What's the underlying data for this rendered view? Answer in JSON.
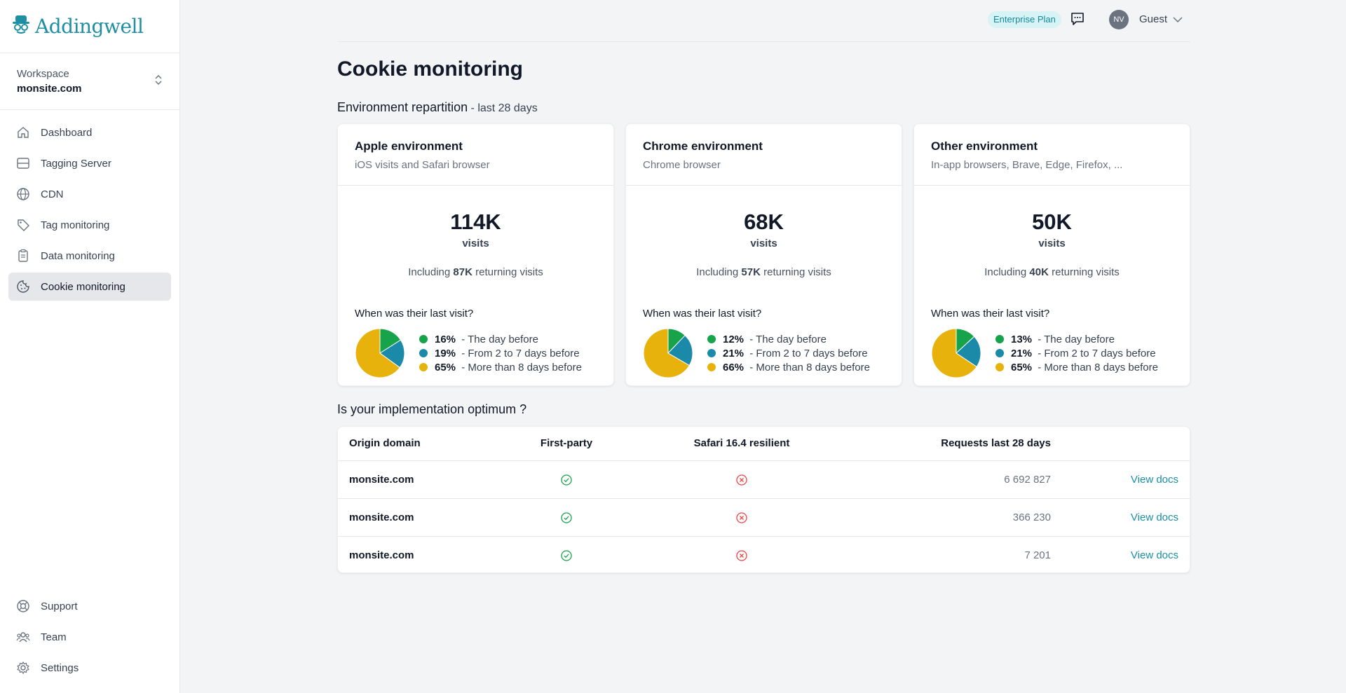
{
  "sidebar": {
    "logo": "Addingwell",
    "workspace_label": "Workspace",
    "workspace_name": "monsite.com",
    "nav": [
      {
        "label": "Dashboard",
        "icon": "home-icon"
      },
      {
        "label": "Tagging Server",
        "icon": "server-icon"
      },
      {
        "label": "CDN",
        "icon": "globe-icon"
      },
      {
        "label": "Tag monitoring",
        "icon": "tag-icon"
      },
      {
        "label": "Data monitoring",
        "icon": "clipboard-icon"
      },
      {
        "label": "Cookie monitoring",
        "icon": "cookie-icon",
        "active": true
      }
    ],
    "bottom_nav": [
      {
        "label": "Support",
        "icon": "lifebuoy-icon"
      },
      {
        "label": "Team",
        "icon": "team-icon"
      },
      {
        "label": "Settings",
        "icon": "gear-icon"
      }
    ]
  },
  "header": {
    "plan_badge": "Enterprise Plan",
    "avatar_initials": "NV",
    "user_name": "Guest"
  },
  "page": {
    "title": "Cookie monitoring",
    "env_section_title": "Environment repartition",
    "env_section_suffix": " - last 28 days",
    "table_section_title": "Is your implementation optimum ?"
  },
  "colors": {
    "green": "#16a34a",
    "blue": "#1b8aa8",
    "yellow": "#e8b20c",
    "accent": "#1a8fa6",
    "error": "#ef4444"
  },
  "environments": [
    {
      "title": "Apple environment",
      "subtitle": "iOS visits and Safari browser",
      "visits": "114K",
      "visits_label": "visits",
      "including_prefix": "Including ",
      "returning": "87K",
      "including_suffix": " returning visits",
      "question": "When was their last visit?",
      "breakdown": [
        {
          "pct": "16%",
          "label": " - The day before",
          "value": 16
        },
        {
          "pct": "19%",
          "label": " - From 2 to 7 days before",
          "value": 19
        },
        {
          "pct": "65%",
          "label": " - More than 8 days before",
          "value": 65
        }
      ]
    },
    {
      "title": "Chrome environment",
      "subtitle": "Chrome browser",
      "visits": "68K",
      "visits_label": "visits",
      "including_prefix": "Including ",
      "returning": "57K",
      "including_suffix": " returning visits",
      "question": "When was their last visit?",
      "breakdown": [
        {
          "pct": "12%",
          "label": " - The day before",
          "value": 12
        },
        {
          "pct": "21%",
          "label": " - From 2 to 7 days before",
          "value": 21
        },
        {
          "pct": "66%",
          "label": " - More than 8 days before",
          "value": 66
        }
      ]
    },
    {
      "title": "Other environment",
      "subtitle": "In-app browsers, Brave, Edge, Firefox, ...",
      "visits": "50K",
      "visits_label": "visits",
      "including_prefix": "Including ",
      "returning": "40K",
      "including_suffix": " returning visits",
      "question": "When was their last visit?",
      "breakdown": [
        {
          "pct": "13%",
          "label": " - The day before",
          "value": 13
        },
        {
          "pct": "21%",
          "label": " - From 2 to 7 days before",
          "value": 21
        },
        {
          "pct": "65%",
          "label": " - More than 8 days before",
          "value": 65
        }
      ]
    }
  ],
  "table": {
    "headers": [
      "Origin domain",
      "First-party",
      "Safari 16.4 resilient",
      "Requests last 28 days"
    ],
    "rows": [
      {
        "domain": "monsite.com",
        "first_party": "check-circle-icon",
        "safari": "x-circle-icon",
        "requests": "6 692 827",
        "link": "View docs"
      },
      {
        "domain": "monsite.com",
        "first_party": "check-circle-icon",
        "safari": "x-circle-icon",
        "requests": "366 230",
        "link": "View docs"
      },
      {
        "domain": "monsite.com",
        "first_party": "check-circle-icon",
        "safari": "x-circle-icon",
        "requests": "7 201",
        "link": "View docs"
      }
    ]
  }
}
